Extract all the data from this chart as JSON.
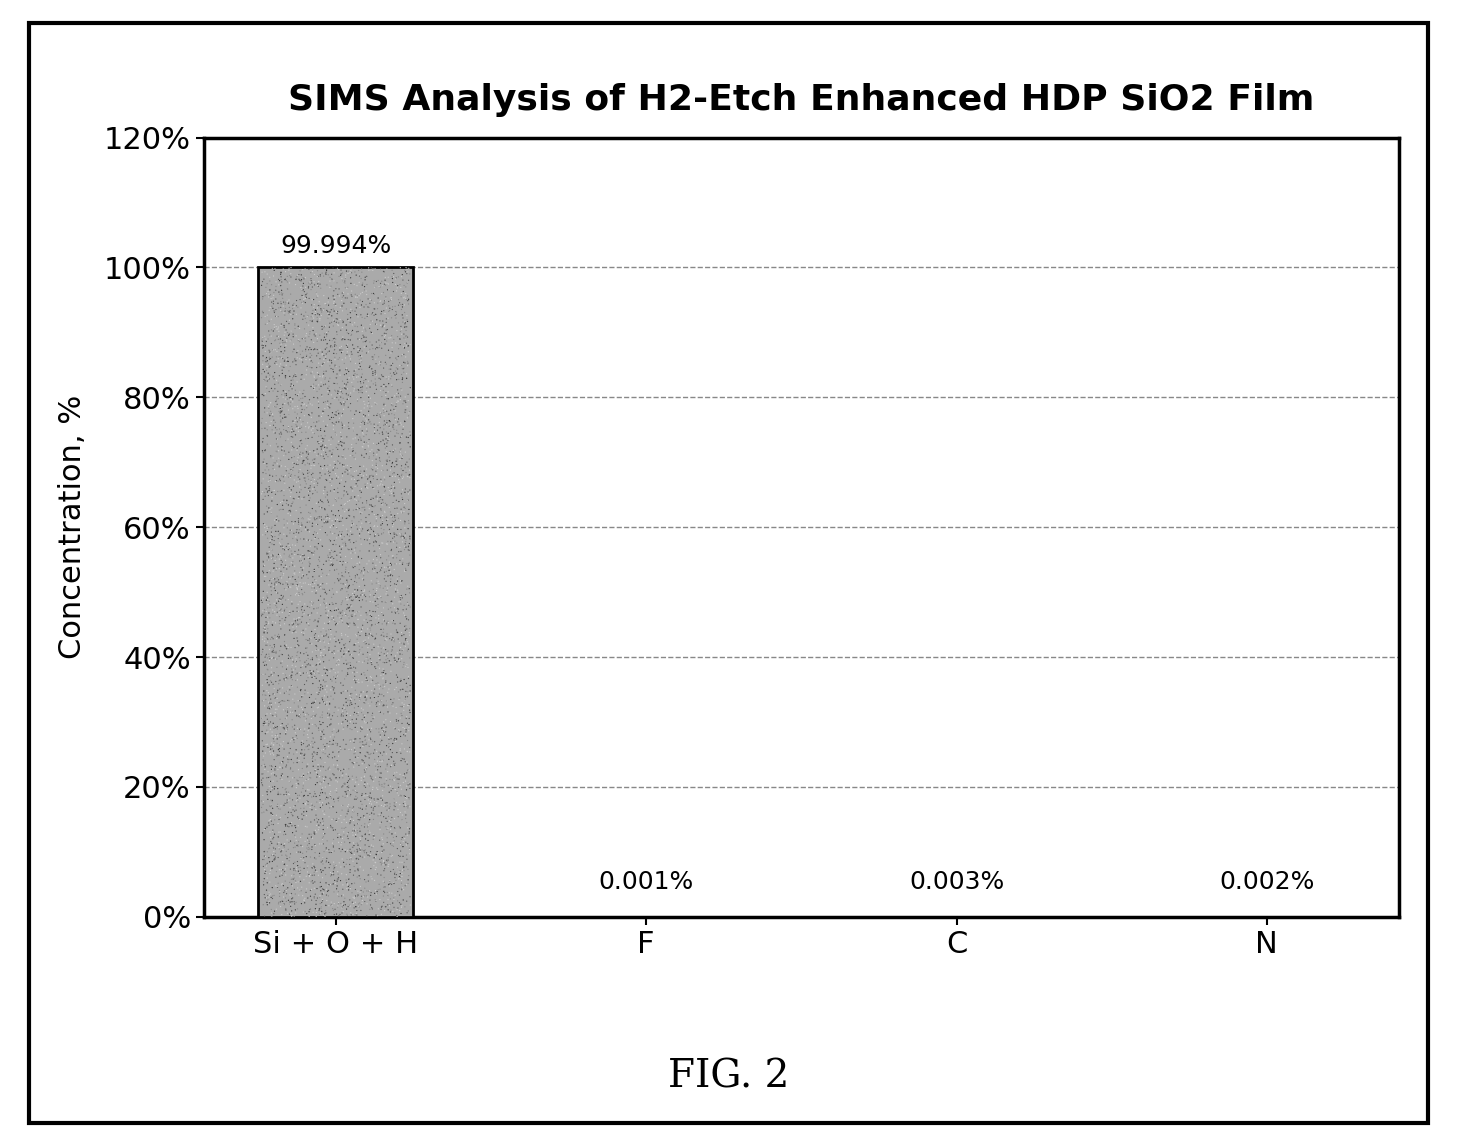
{
  "title": "SIMS Analysis of H2-Etch Enhanced HDP SiO2 Film",
  "ylabel": "Concentration, %",
  "categories": [
    "Si + O + H",
    "F",
    "C",
    "N"
  ],
  "values": [
    99.994,
    0.001,
    0.003,
    0.002
  ],
  "labels": [
    "99.994%",
    "0.001%",
    "0.003%",
    "0.002%"
  ],
  "ylim": [
    0,
    120
  ],
  "yticks": [
    0,
    20,
    40,
    60,
    80,
    100,
    120
  ],
  "ytick_labels": [
    "0%",
    "20%",
    "40%",
    "60%",
    "80%",
    "100%",
    "120%"
  ],
  "bar_color": "#aaaaaa",
  "bar_edgecolor": "#000000",
  "background_color": "#ffffff",
  "title_fontsize": 26,
  "label_fontsize": 22,
  "tick_fontsize": 22,
  "annotation_fontsize": 18,
  "fig_caption": "FIG. 2",
  "fig_caption_fontsize": 28,
  "outer_border_linewidth": 3
}
